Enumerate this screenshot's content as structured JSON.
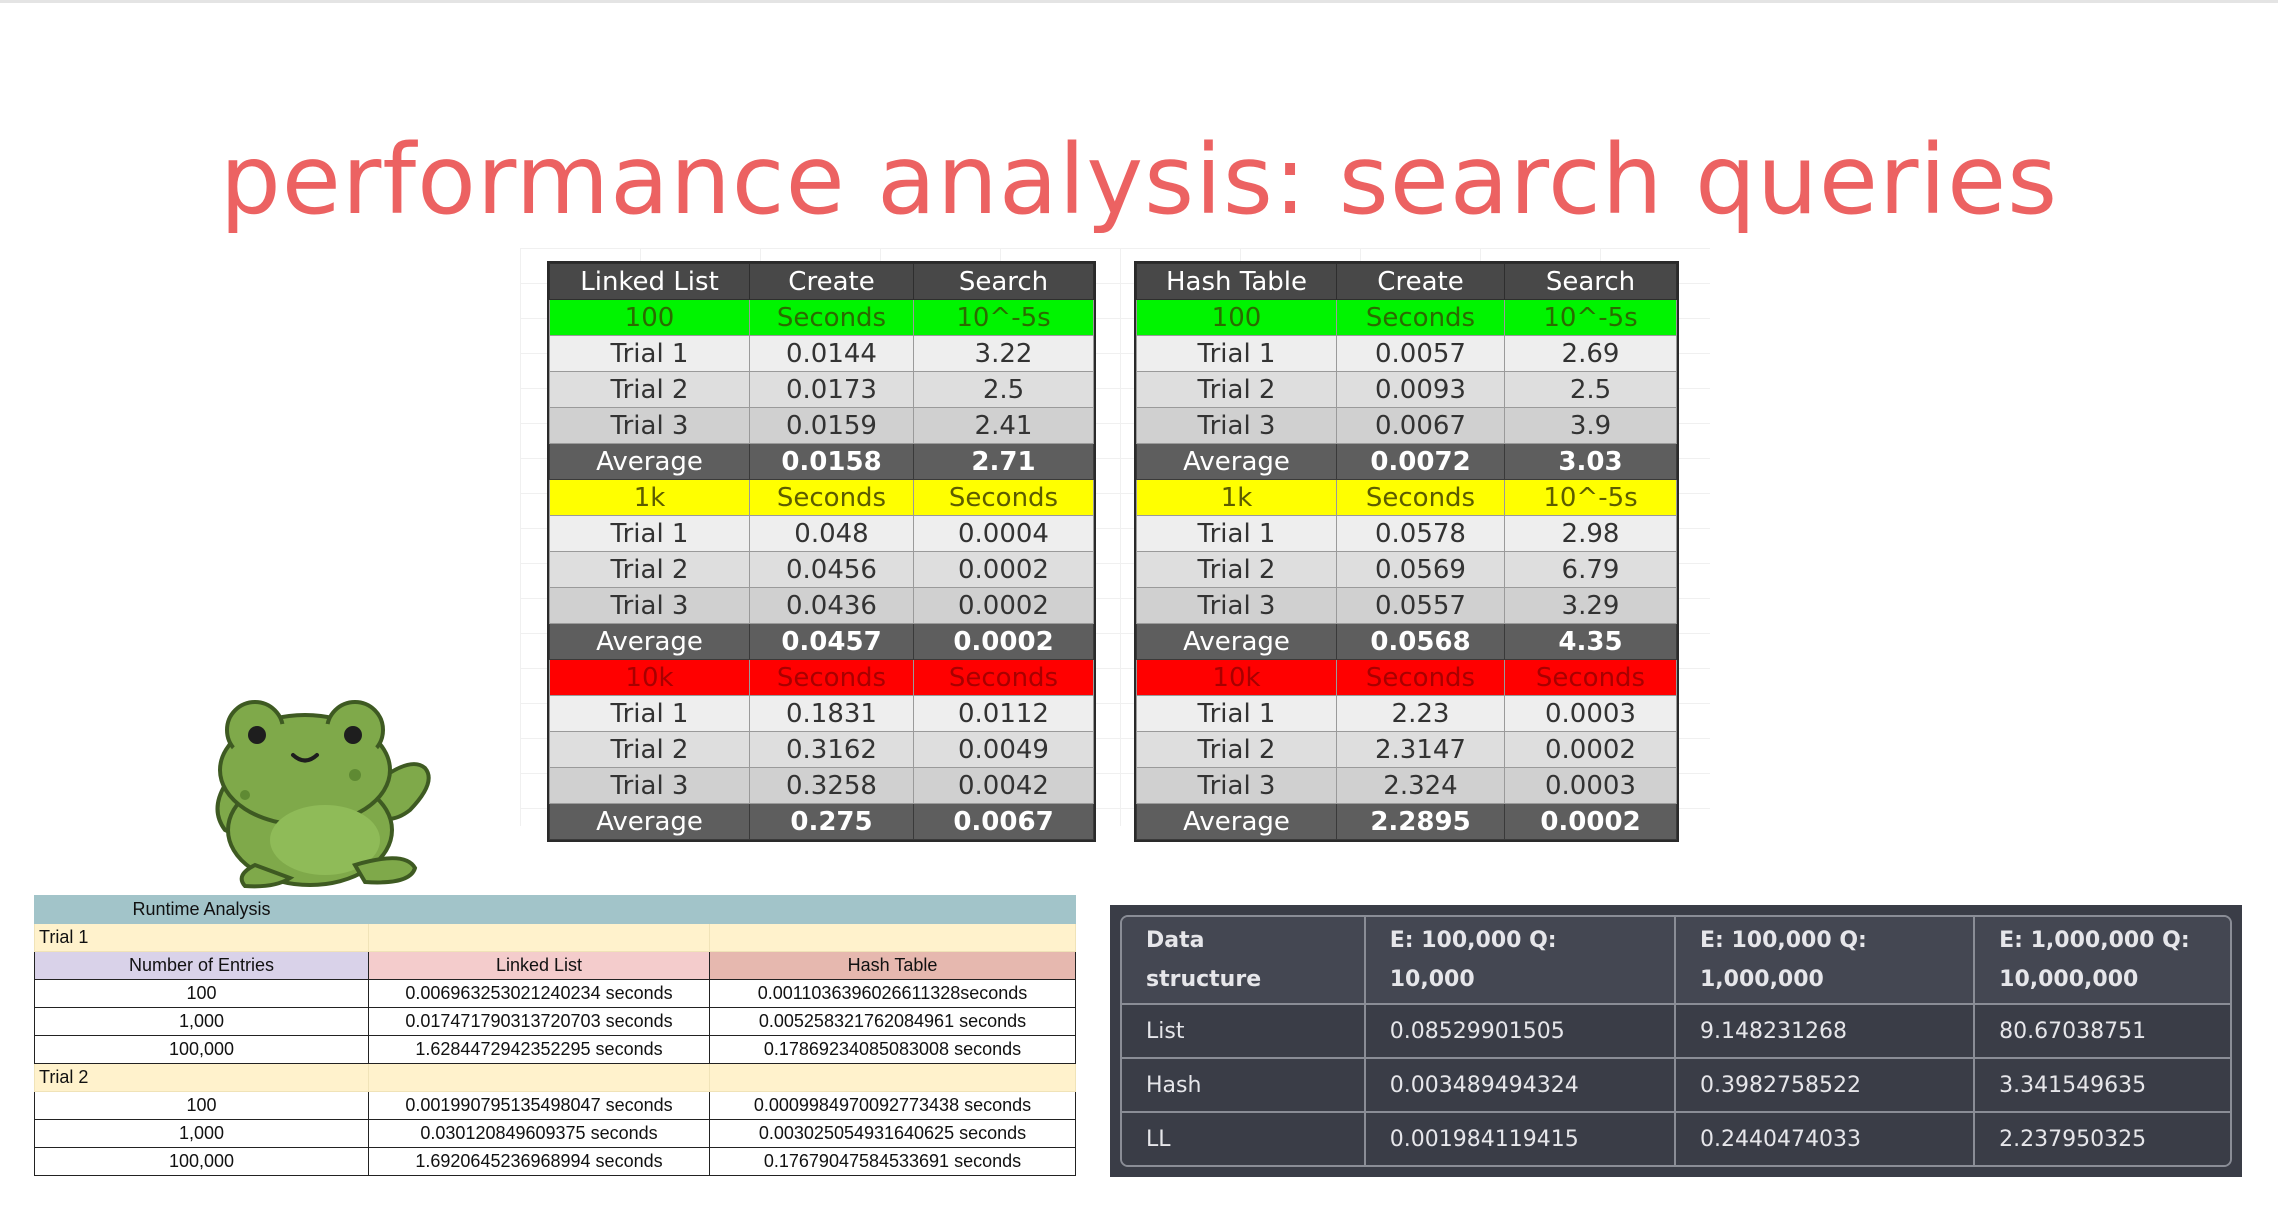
{
  "title": "performance analysis: search queries",
  "linked_list": {
    "headers": [
      "Linked List",
      "Create",
      "Search"
    ],
    "sections": [
      {
        "color": "green",
        "label": "100",
        "col2": "Seconds",
        "col3": "10^-5s",
        "trials": [
          [
            "Trial 1",
            "0.0144",
            "3.22"
          ],
          [
            "Trial 2",
            "0.0173",
            "2.5"
          ],
          [
            "Trial 3",
            "0.0159",
            "2.41"
          ]
        ],
        "average": [
          "Average",
          "0.0158",
          "2.71"
        ]
      },
      {
        "color": "yellow",
        "label": "1k",
        "col2": "Seconds",
        "col3": "Seconds",
        "trials": [
          [
            "Trial 1",
            "0.048",
            "0.0004"
          ],
          [
            "Trial 2",
            "0.0456",
            "0.0002"
          ],
          [
            "Trial 3",
            "0.0436",
            "0.0002"
          ]
        ],
        "average": [
          "Average",
          "0.0457",
          "0.0002"
        ]
      },
      {
        "color": "red",
        "label": "10k",
        "col2": "Seconds",
        "col3": "Seconds",
        "trials": [
          [
            "Trial 1",
            "0.1831",
            "0.0112"
          ],
          [
            "Trial 2",
            "0.3162",
            "0.0049"
          ],
          [
            "Trial 3",
            "0.3258",
            "0.0042"
          ]
        ],
        "average": [
          "Average",
          "0.275",
          "0.0067"
        ]
      }
    ]
  },
  "hash_table": {
    "headers": [
      "Hash Table",
      "Create",
      "Search"
    ],
    "sections": [
      {
        "color": "green",
        "label": "100",
        "col2": "Seconds",
        "col3": "10^-5s",
        "trials": [
          [
            "Trial 1",
            "0.0057",
            "2.69"
          ],
          [
            "Trial 2",
            "0.0093",
            "2.5"
          ],
          [
            "Trial 3",
            "0.0067",
            "3.9"
          ]
        ],
        "average": [
          "Average",
          "0.0072",
          "3.03"
        ]
      },
      {
        "color": "yellow",
        "label": "1k",
        "col2": "Seconds",
        "col3": "10^-5s",
        "trials": [
          [
            "Trial 1",
            "0.0578",
            "2.98"
          ],
          [
            "Trial 2",
            "0.0569",
            "6.79"
          ],
          [
            "Trial 3",
            "0.0557",
            "3.29"
          ]
        ],
        "average": [
          "Average",
          "0.0568",
          "4.35"
        ]
      },
      {
        "color": "red",
        "label": "10k",
        "col2": "Seconds",
        "col3": "Seconds",
        "trials": [
          [
            "Trial 1",
            "2.23",
            "0.0003"
          ],
          [
            "Trial 2",
            "2.3147",
            "0.0002"
          ],
          [
            "Trial 3",
            "2.324",
            "0.0003"
          ]
        ],
        "average": [
          "Average",
          "2.2895",
          "0.0002"
        ]
      }
    ]
  },
  "runtime": {
    "title": "Runtime Analysis",
    "col_headers": [
      "Number of Entries",
      "Linked List",
      "Hash Table"
    ],
    "trials": [
      {
        "label": "Trial 1",
        "rows": [
          [
            "100",
            "0.006963253021240234 seconds",
            "0.0011036396026611328seconds"
          ],
          [
            "1,000",
            "0.017471790313720703 seconds",
            "0.005258321762084961 seconds"
          ],
          [
            "100,000",
            "1.6284472942352295 seconds",
            "0.17869234085083008 seconds"
          ]
        ]
      },
      {
        "label": "Trial 2",
        "rows": [
          [
            "100",
            "0.001990795135498047 seconds",
            "0.0009984970092773438 seconds"
          ],
          [
            "1,000",
            "0.030120849609375 seconds",
            "0.003025054931640625 seconds"
          ],
          [
            "100,000",
            "1.6920645236968994 seconds",
            "0.17679047584533691 seconds"
          ]
        ]
      }
    ]
  },
  "results": {
    "headers": [
      [
        "Data",
        "structure"
      ],
      [
        "E: 100,000 Q:",
        "10,000"
      ],
      [
        "E: 100,000 Q:",
        "1,000,000"
      ],
      [
        "E: 1,000,000 Q:",
        "10,000,000"
      ]
    ],
    "rows": [
      [
        "List",
        "0.08529901505",
        "9.148231268",
        "80.67038751"
      ],
      [
        "Hash",
        "0.003489494324",
        "0.3982758522",
        "3.341549635"
      ],
      [
        "LL",
        "0.001984119415",
        "0.2440474033",
        "2.237950325"
      ]
    ]
  }
}
